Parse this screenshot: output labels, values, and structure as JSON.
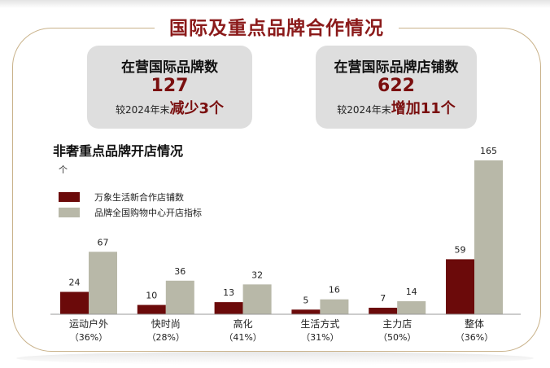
{
  "header": {
    "title": "国际及重点品牌合作情况"
  },
  "cards": [
    {
      "label": "在营国际品牌数",
      "value": "127",
      "compare_prefix": "较2024年末",
      "compare_change": "减少3个"
    },
    {
      "label": "在营国际品牌店铺数",
      "value": "622",
      "compare_prefix": "较2024年末",
      "compare_change": "增加11个"
    }
  ],
  "colors": {
    "series1": "#6b0a0a",
    "series2": "#b8b8a8",
    "accent": "#8b1a1a",
    "frame": "#c9b28a"
  },
  "chart_data": {
    "type": "bar",
    "title": "非奢重点品牌开店情况",
    "ylabel": "个",
    "legend_position": "top-left",
    "categories": [
      "运动户外",
      "快时尚",
      "高化",
      "生活方式",
      "主力店",
      "整体"
    ],
    "category_notes": [
      "（36%）",
      "（28%）",
      "（41%）",
      "（31%）",
      "（50%）",
      "（36%）"
    ],
    "series": [
      {
        "name": "万象生活新合作店铺数",
        "values": [
          24,
          10,
          13,
          5,
          7,
          59
        ]
      },
      {
        "name": "品牌全国购物中心开店指标",
        "values": [
          67,
          36,
          32,
          16,
          14,
          165
        ]
      }
    ],
    "ylim": [
      0,
      170
    ],
    "grid": false
  }
}
